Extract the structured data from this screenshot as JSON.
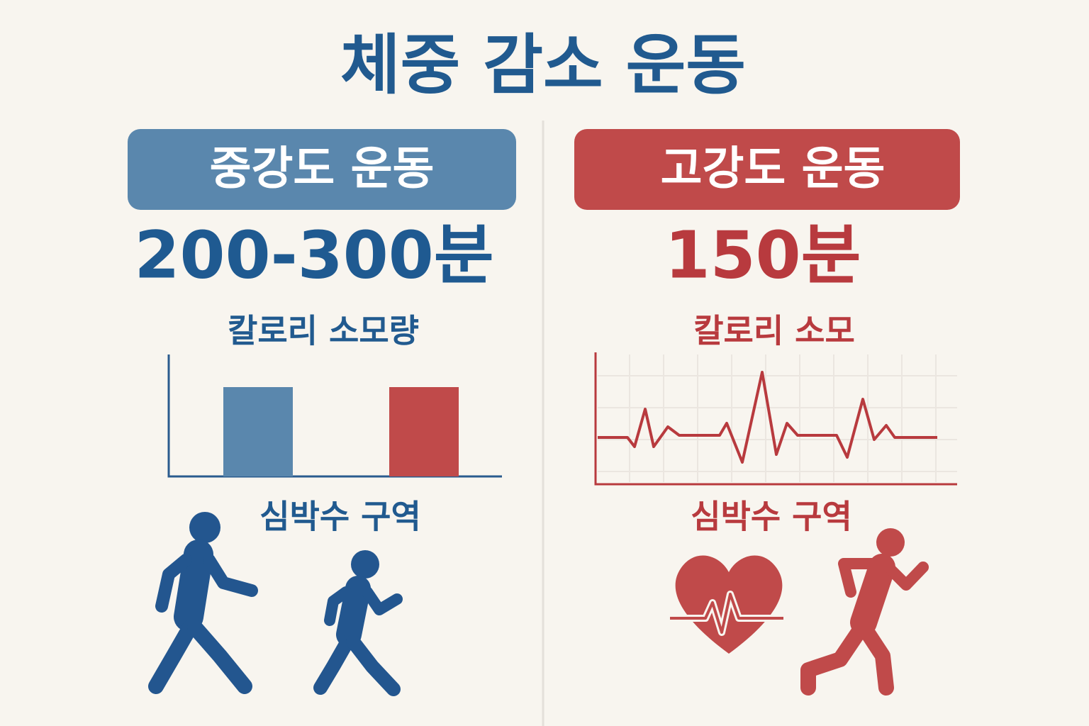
{
  "title": "체중 감소 운동",
  "moderate": {
    "label": "중강도 운동",
    "duration": "200-300분",
    "calorie_label": "칼로리 소모량",
    "heart_rate_label": "심박수 구역"
  },
  "vigorous": {
    "label": "고강도 운동",
    "duration": "150분",
    "calorie_label": "칼로리 소모",
    "heart_rate_label": "심박수 구역"
  }
}
